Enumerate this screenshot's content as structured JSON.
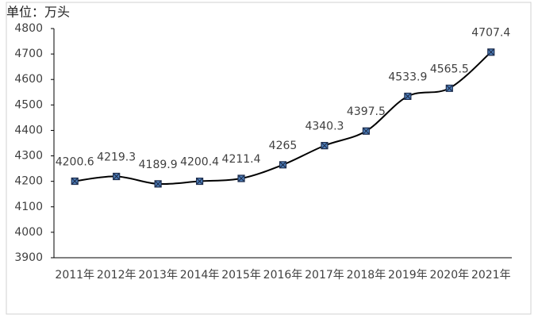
{
  "chart_data": {
    "type": "line",
    "title": "单位：万头",
    "categories": [
      "2011年",
      "2012年",
      "2013年",
      "2014年",
      "2015年",
      "2016年",
      "2017年",
      "2018年",
      "2019年",
      "2020年",
      "2021年"
    ],
    "values": [
      4200.6,
      4219.3,
      4189.9,
      4200.4,
      4211.4,
      4265,
      4340.3,
      4397.5,
      4533.9,
      4565.5,
      4707.4
    ],
    "color": "#000000",
    "marker_color": "#4f81bd",
    "ylim": [
      3900,
      4800
    ],
    "yticks": [
      3900,
      4000,
      4100,
      4200,
      4300,
      4400,
      4500,
      4600,
      4700,
      4800
    ],
    "grid": false
  }
}
